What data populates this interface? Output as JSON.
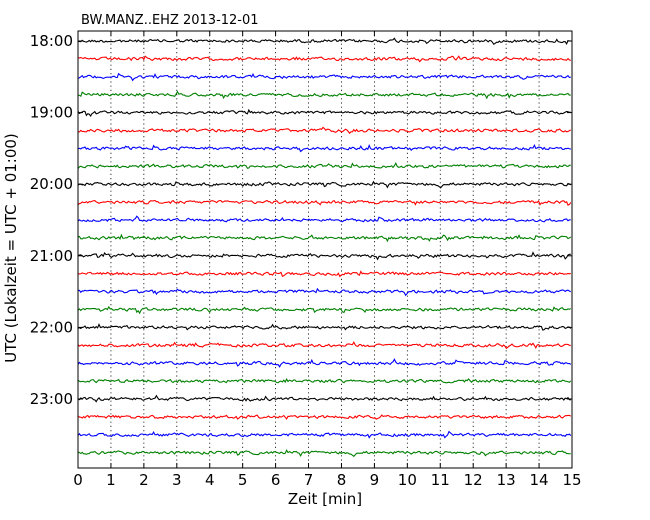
{
  "chart_data": {
    "type": "line",
    "title": "BW.MANZ..EHZ 2013-12-01",
    "xlabel": "Zeit  [min]",
    "ylabel": "UTC (Lokalzeit = UTC + 01:00)",
    "xlim": [
      0,
      15
    ],
    "x_ticks": [
      0,
      1,
      2,
      3,
      4,
      5,
      6,
      7,
      8,
      9,
      10,
      11,
      12,
      13,
      14,
      15
    ],
    "y_ticks": [
      "18:00",
      "19:00",
      "20:00",
      "21:00",
      "22:00",
      "23:00"
    ],
    "grid": "vertical dotted",
    "trace_colors": [
      "#000000",
      "#ff0000",
      "#0000ff",
      "#008000"
    ],
    "series": [
      {
        "start": "18:00",
        "color": "#000000"
      },
      {
        "start": "18:15",
        "color": "#ff0000"
      },
      {
        "start": "18:30",
        "color": "#0000ff"
      },
      {
        "start": "18:45",
        "color": "#008000"
      },
      {
        "start": "19:00",
        "color": "#000000"
      },
      {
        "start": "19:15",
        "color": "#ff0000"
      },
      {
        "start": "19:30",
        "color": "#0000ff"
      },
      {
        "start": "19:45",
        "color": "#008000"
      },
      {
        "start": "20:00",
        "color": "#000000"
      },
      {
        "start": "20:15",
        "color": "#ff0000"
      },
      {
        "start": "20:30",
        "color": "#0000ff"
      },
      {
        "start": "20:45",
        "color": "#008000"
      },
      {
        "start": "21:00",
        "color": "#000000"
      },
      {
        "start": "21:15",
        "color": "#ff0000"
      },
      {
        "start": "21:30",
        "color": "#0000ff"
      },
      {
        "start": "21:45",
        "color": "#008000"
      },
      {
        "start": "22:00",
        "color": "#000000"
      },
      {
        "start": "22:15",
        "color": "#ff0000"
      },
      {
        "start": "22:30",
        "color": "#0000ff"
      },
      {
        "start": "22:45",
        "color": "#008000"
      },
      {
        "start": "23:00",
        "color": "#000000"
      },
      {
        "start": "23:15",
        "color": "#ff0000"
      },
      {
        "start": "23:30",
        "color": "#0000ff"
      },
      {
        "start": "23:45",
        "color": "#008000"
      }
    ]
  }
}
